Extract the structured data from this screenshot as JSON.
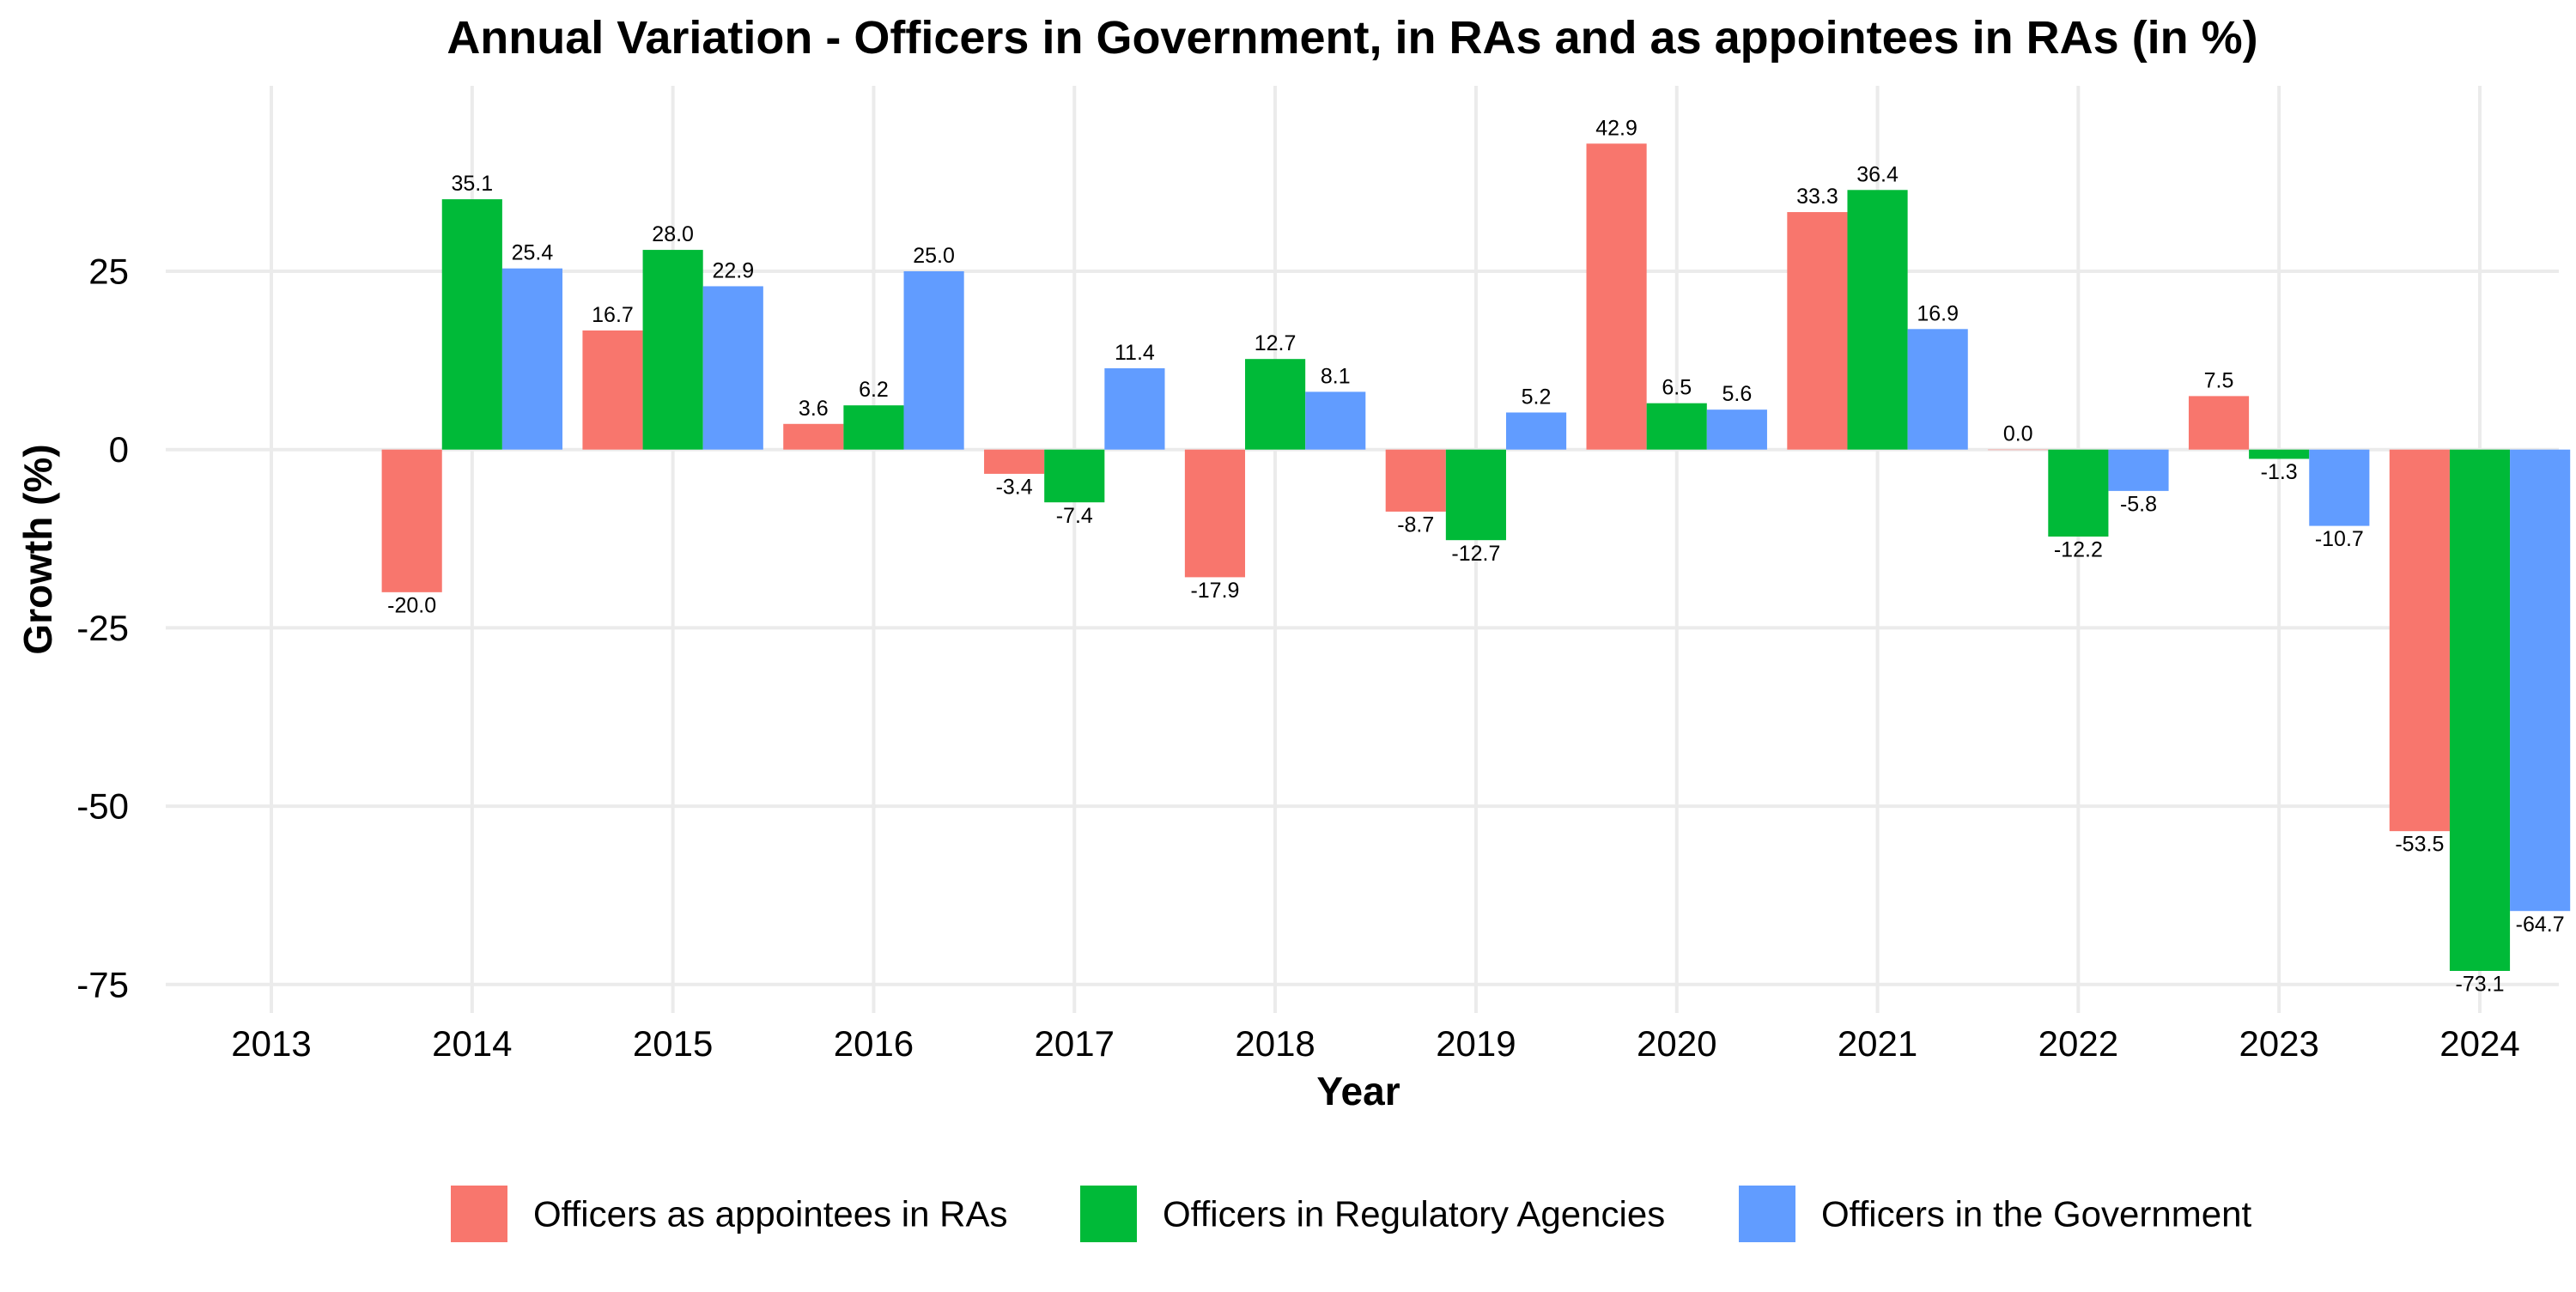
{
  "chart_data": {
    "type": "bar",
    "title": "Annual Variation - Officers in Government, in RAs and as appointees in RAs (in %)",
    "xlabel": "Year",
    "ylabel": "Growth (%)",
    "categories": [
      "2013",
      "2014",
      "2015",
      "2016",
      "2017",
      "2018",
      "2019",
      "2020",
      "2021",
      "2022",
      "2023",
      "2024"
    ],
    "series": [
      {
        "name": "Officers as appointees in RAs",
        "color": "#F8766D",
        "values": [
          null,
          -20.0,
          16.7,
          3.6,
          -3.4,
          -17.9,
          -8.7,
          42.9,
          33.3,
          0.0,
          7.5,
          -53.5
        ],
        "labels": [
          "",
          "-20.0",
          "16.7",
          "3.6",
          "-3.4",
          "-17.9",
          "-8.7",
          "42.9",
          "33.3",
          "0.0",
          "7.5",
          "-53.5"
        ]
      },
      {
        "name": "Officers in Regulatory Agencies",
        "color": "#00BA38",
        "values": [
          null,
          35.1,
          28.0,
          6.2,
          -7.4,
          12.7,
          -12.7,
          6.5,
          36.4,
          -12.2,
          -1.3,
          -73.1
        ],
        "labels": [
          "",
          "35.1",
          "28.0",
          "6.2",
          "-7.4",
          "12.7",
          "-12.7",
          "6.5",
          "36.4",
          "-12.2",
          "-1.3",
          "-73.1"
        ]
      },
      {
        "name": "Officers in the Government",
        "color": "#619CFF",
        "values": [
          null,
          25.4,
          22.9,
          25.0,
          11.4,
          8.1,
          5.2,
          5.6,
          16.9,
          -5.8,
          -10.7,
          -64.7
        ],
        "labels": [
          "",
          "25.4",
          "22.9",
          "25.0",
          "11.4",
          "8.1",
          "5.2",
          "5.6",
          "16.9",
          "-5.8",
          "-10.7",
          "-64.7"
        ]
      }
    ],
    "y_ticks": [
      {
        "value": 25,
        "label": "25"
      },
      {
        "value": 0,
        "label": "0"
      },
      {
        "value": -25,
        "label": "-25"
      },
      {
        "value": -50,
        "label": "-50"
      },
      {
        "value": -75,
        "label": "-75"
      }
    ],
    "ylim": [
      -79,
      51
    ],
    "grid": true,
    "legend_position": "bottom"
  }
}
